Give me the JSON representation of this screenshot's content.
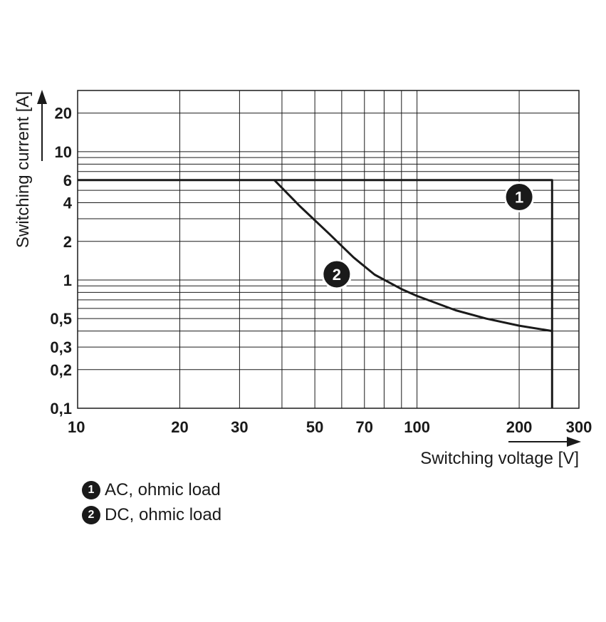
{
  "chart_data": {
    "type": "line",
    "x_scale": "log",
    "y_scale": "log",
    "xlim": [
      10,
      300
    ],
    "ylim": [
      0.1,
      30
    ],
    "xlabel": "Switching voltage [V]",
    "ylabel": "Switching current [A]",
    "x_ticks": [
      10,
      20,
      30,
      50,
      70,
      100,
      200,
      300
    ],
    "x_tick_labels": [
      "10",
      "20",
      "30",
      "50",
      "70",
      "100",
      "200",
      "300"
    ],
    "y_ticks": [
      0.1,
      0.2,
      0.3,
      0.5,
      1,
      2,
      4,
      6,
      10,
      20
    ],
    "y_tick_labels": [
      "0,1",
      "0,2",
      "0,3",
      "0,5",
      "1",
      "2",
      "4",
      "6",
      "10",
      "20"
    ],
    "grid": true,
    "series": [
      {
        "name": "AC, ohmic load",
        "marker": "1",
        "x": [
          10,
          250,
          250
        ],
        "y": [
          6,
          6,
          0.1
        ]
      },
      {
        "name": "DC, ohmic load",
        "marker": "2",
        "x": [
          38,
          45,
          55,
          65,
          75,
          90,
          100,
          130,
          160,
          200,
          250
        ],
        "y": [
          6,
          3.8,
          2.3,
          1.5,
          1.1,
          0.85,
          0.75,
          0.58,
          0.5,
          0.44,
          0.4
        ]
      }
    ]
  },
  "legend": [
    {
      "marker": "1",
      "label": "AC, ohmic load"
    },
    {
      "marker": "2",
      "label": "DC, ohmic load"
    }
  ]
}
